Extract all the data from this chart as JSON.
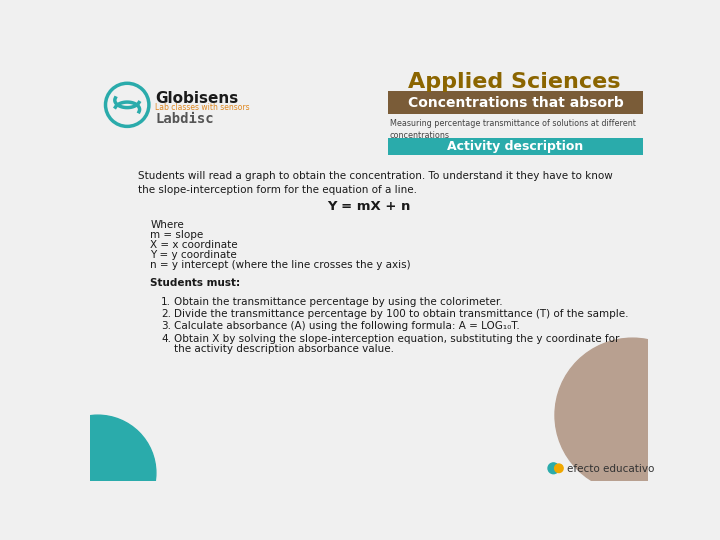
{
  "bg_color": "#f0f0f0",
  "title_applied": "Applied Sciences",
  "title_applied_color": "#8B6500",
  "box1_text": "Concentrations that absorb",
  "box1_color": "#7A5C38",
  "box1_text_color": "#ffffff",
  "subtitle_text": "Measuring percentage transmittance of solutions at different\nconcentrations",
  "subtitle_color": "#444444",
  "box2_text": "Activity description",
  "box2_color": "#2AABAB",
  "box2_text_color": "#ffffff",
  "body_text1": "Students will read a graph to obtain the concentration. To understand it they have to know\nthe slope-interception form for the equation of a line.",
  "equation": "Y = mX + n",
  "where_lines": [
    "Where",
    "m = slope",
    "X = x coordinate",
    "Y = y coordinate",
    "n = y intercept (where the line crosses the y axis)"
  ],
  "students_must": "Students must:",
  "numbered_items": [
    "Obtain the transmittance percentage by using the colorimeter.",
    "Divide the transmittance percentage by 100 to obtain transmittance (T) of the sample.",
    "Calculate absorbance (A) using the following formula: A = LOG₁₀T.",
    [
      "Obtain X by solving the slope-interception equation, substituting the y coordinate for",
      "the activity description absorbance value."
    ]
  ],
  "efecto_text": "efecto educativo",
  "teal_circle_color": "#2AABAB",
  "tan_circle_color": "#B8A090",
  "text_color": "#1a1a1a",
  "globisens_color": "#2AABAB",
  "globisens_text_color": "#1a1a1a",
  "orange_text_color": "#E08820",
  "labdisc_color": "#555555"
}
